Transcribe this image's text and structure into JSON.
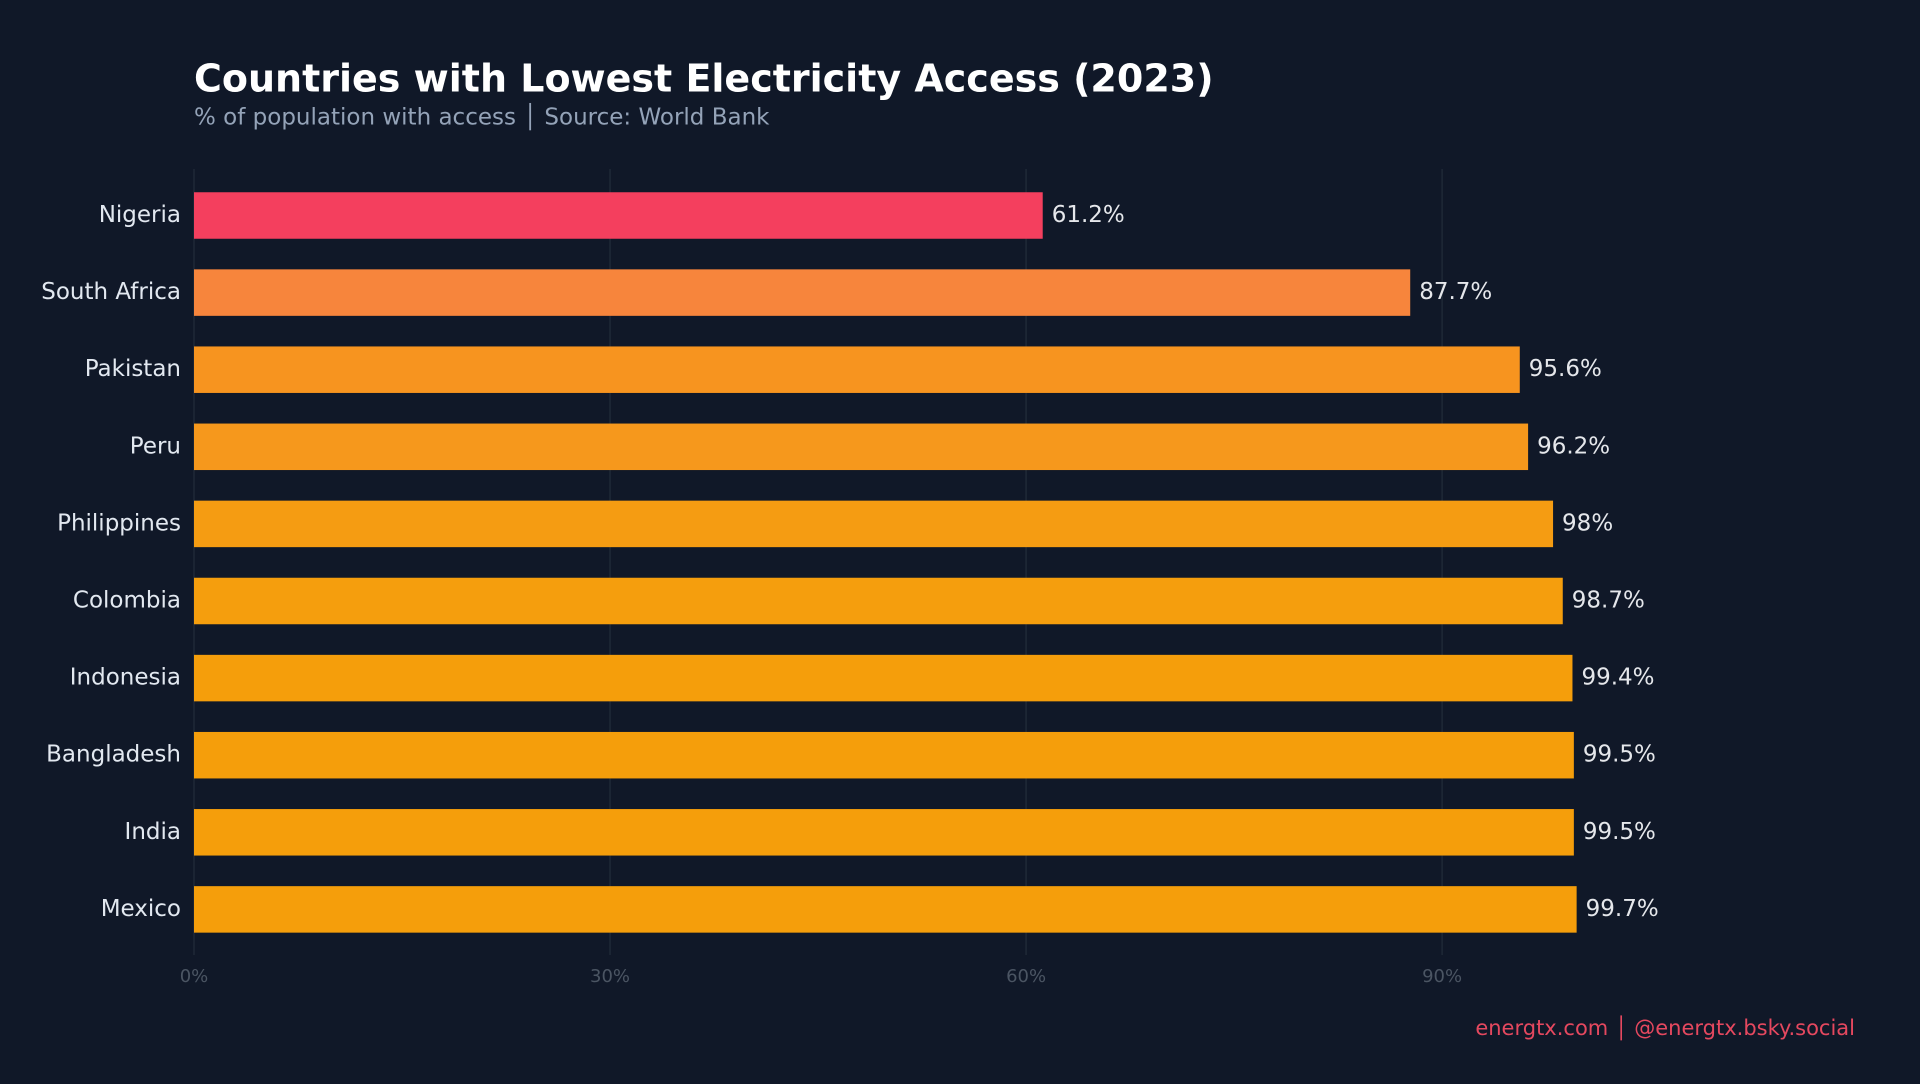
{
  "chart_data": {
    "type": "bar",
    "orientation": "horizontal",
    "title": "Countries with Lowest Electricity Access (2023)",
    "subtitle": "% of population with access │ Source: World Bank",
    "footer": "energtx.com │ @energtx.bsky.social",
    "categories": [
      "Nigeria",
      "South Africa",
      "Pakistan",
      "Peru",
      "Philippines",
      "Colombia",
      "Indonesia",
      "Bangladesh",
      "India",
      "Mexico"
    ],
    "values": [
      61.2,
      87.7,
      95.6,
      96.2,
      98,
      98.7,
      99.4,
      99.5,
      99.5,
      99.7
    ],
    "value_labels": [
      "61.2%",
      "87.7%",
      "95.6%",
      "96.2%",
      "98%",
      "98.7%",
      "99.4%",
      "99.5%",
      "99.5%",
      "99.7%"
    ],
    "colors": [
      "#f43f5e",
      "#f7853c",
      "#f7941f",
      "#f6981c",
      "#f59c12",
      "#f59e0d",
      "#f59e0b",
      "#f59e0b",
      "#f59e0b",
      "#f59e0b"
    ],
    "xlim": [
      0,
      106
    ],
    "xticks": [
      {
        "value": 0,
        "label": "0%"
      },
      {
        "value": 30,
        "label": "30%"
      },
      {
        "value": 60,
        "label": "60%"
      },
      {
        "value": 90,
        "label": "90%"
      }
    ],
    "grid": true
  }
}
